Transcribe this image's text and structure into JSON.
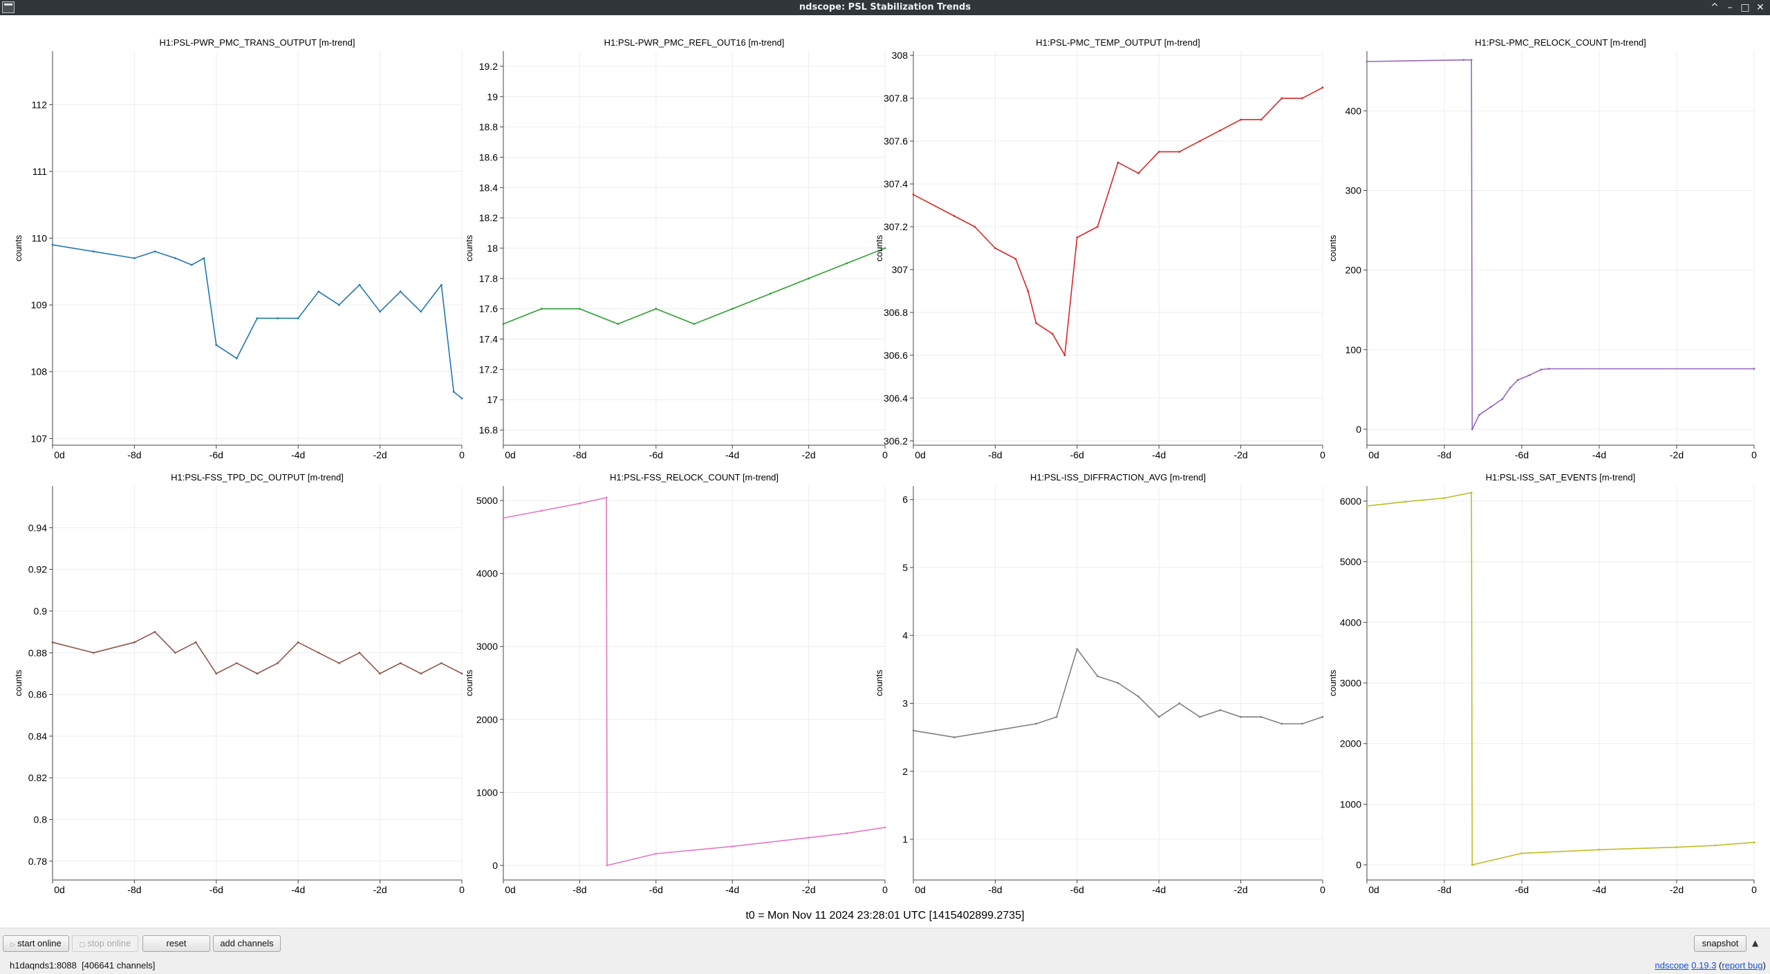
{
  "window": {
    "title": "ndscope: PSL Stabilization Trends",
    "controls": [
      "^",
      "–",
      "□",
      "✕"
    ]
  },
  "x_tick_labels": [
    "0d",
    "-8d",
    "-6d",
    "-4d",
    "-2d",
    "0"
  ],
  "t0_label": "t0 = Mon Nov 11 2024 23:28:01 UTC [1415402899.2735]",
  "toolbar": {
    "start_online": "start online",
    "stop_online": "stop online",
    "reset": "reset",
    "add_channels": "add channels",
    "snapshot": "snapshot",
    "collapse_icon": "triangle-up-icon"
  },
  "status": {
    "server": "h1daqnds1:8088",
    "channels": "[406641 channels]",
    "app_name": "ndscope",
    "version": "0.19.3",
    "report": "report bug"
  },
  "chart_data": [
    {
      "type": "line",
      "title": "H1:PSL-PWR_PMC_TRANS_OUTPUT [m-trend]",
      "ylabel": "counts",
      "color": "#1f77b4",
      "ylim": [
        106.9,
        112.8
      ],
      "yticks": [
        "107",
        "108",
        "109",
        "110",
        "111",
        "112"
      ],
      "xlim": [
        -10,
        0
      ],
      "x": [
        -10,
        -9,
        -8,
        -7.5,
        -7,
        -6.6,
        -6.3,
        -6,
        -5.5,
        -5,
        -4.5,
        -4,
        -3.5,
        -3,
        -2.5,
        -2,
        -1.5,
        -1,
        -0.5,
        -0.2,
        0
      ],
      "series": [
        {
          "values": [
            109.9,
            109.8,
            109.7,
            109.8,
            109.7,
            109.6,
            109.7,
            108.4,
            108.2,
            108.8,
            108.8,
            108.8,
            109.2,
            109.0,
            109.3,
            108.9,
            109.2,
            108.9,
            109.3,
            107.7,
            107.6
          ]
        }
      ]
    },
    {
      "type": "line",
      "title": "H1:PSL-PWR_PMC_REFL_OUT16 [m-trend]",
      "ylabel": "counts",
      "color": "#2ca02c",
      "ylim": [
        16.7,
        19.3
      ],
      "yticks": [
        "16.8",
        "17",
        "17.2",
        "17.4",
        "17.6",
        "17.8",
        "18",
        "18.2",
        "18.4",
        "18.6",
        "18.8",
        "19",
        "19.2"
      ],
      "xlim": [
        -10,
        0
      ],
      "x": [
        -10,
        -9,
        -8,
        -7,
        -6,
        -5,
        -4,
        -3,
        -2,
        -1,
        0
      ],
      "series": [
        {
          "values": [
            17.5,
            17.6,
            17.6,
            17.5,
            17.6,
            17.5,
            17.6,
            17.7,
            17.8,
            17.9,
            18.0
          ]
        }
      ]
    },
    {
      "type": "line",
      "title": "H1:PSL-PMC_TEMP_OUTPUT [m-trend]",
      "ylabel": "counts",
      "color": "#d62728",
      "ylim": [
        306.18,
        308.02
      ],
      "yticks": [
        "306.2",
        "306.4",
        "306.6",
        "306.8",
        "307",
        "307.2",
        "307.4",
        "307.6",
        "307.8",
        "308"
      ],
      "xlim": [
        -10,
        0
      ],
      "x": [
        -10,
        -9,
        -8.5,
        -8,
        -7.5,
        -7.2,
        -7,
        -6.6,
        -6.3,
        -6,
        -5.5,
        -5,
        -4.5,
        -4,
        -3.5,
        -3,
        -2.5,
        -2,
        -1.5,
        -1,
        -0.5,
        0
      ],
      "series": [
        {
          "values": [
            307.35,
            307.25,
            307.2,
            307.1,
            307.05,
            306.9,
            306.75,
            306.7,
            306.6,
            307.15,
            307.2,
            307.5,
            307.45,
            307.55,
            307.55,
            307.6,
            307.65,
            307.7,
            307.7,
            307.8,
            307.8,
            307.85
          ]
        }
      ]
    },
    {
      "type": "line",
      "title": "H1:PSL-PMC_RELOCK_COUNT [m-trend]",
      "ylabel": "counts",
      "color": "#9467bd",
      "ylim": [
        -20,
        475
      ],
      "yticks": [
        "0",
        "100",
        "200",
        "300",
        "400"
      ],
      "xlim": [
        -10,
        0
      ],
      "x": [
        -10,
        -7.5,
        -7.3,
        -7.28,
        -7.1,
        -6.8,
        -6.5,
        -6.3,
        -6.1,
        -5.8,
        -5.5,
        -5.3,
        0
      ],
      "series": [
        {
          "values": [
            462,
            464,
            464,
            0,
            18,
            28,
            38,
            52,
            62,
            68,
            75,
            76,
            76
          ]
        }
      ]
    },
    {
      "type": "line",
      "title": "H1:PSL-FSS_TPD_DC_OUTPUT [m-trend]",
      "ylabel": "counts",
      "color": "#8c564b",
      "ylim": [
        0.771,
        0.96
      ],
      "yticks": [
        "0.78",
        "0.8",
        "0.82",
        "0.84",
        "0.86",
        "0.88",
        "0.9",
        "0.92",
        "0.94"
      ],
      "xlim": [
        -10,
        0
      ],
      "x": [
        -10,
        -9,
        -8,
        -7.5,
        -7,
        -6.5,
        -6,
        -5.5,
        -5,
        -4.5,
        -4,
        -3.5,
        -3,
        -2.5,
        -2,
        -1.5,
        -1,
        -0.5,
        0
      ],
      "series": [
        {
          "values": [
            0.885,
            0.88,
            0.885,
            0.89,
            0.88,
            0.885,
            0.87,
            0.875,
            0.87,
            0.875,
            0.885,
            0.88,
            0.875,
            0.88,
            0.87,
            0.875,
            0.87,
            0.875,
            0.87
          ]
        }
      ]
    },
    {
      "type": "line",
      "title": "H1:PSL-FSS_RELOCK_COUNT [m-trend]",
      "ylabel": "counts",
      "color": "#e377c2",
      "ylim": [
        -200,
        5200
      ],
      "yticks": [
        "0",
        "1000",
        "2000",
        "3000",
        "4000",
        "5000"
      ],
      "xlim": [
        -10,
        0
      ],
      "x": [
        -10,
        -9,
        -8,
        -7.3,
        -7.28,
        -6,
        -4,
        -2,
        -1,
        0
      ],
      "series": [
        {
          "values": [
            4760,
            4860,
            4960,
            5040,
            0,
            160,
            260,
            380,
            440,
            520
          ]
        }
      ]
    },
    {
      "type": "line",
      "title": "H1:PSL-ISS_DIFFRACTION_AVG [m-trend]",
      "ylabel": "counts",
      "color": "#7f7f7f",
      "ylim": [
        0.4,
        6.2
      ],
      "yticks": [
        "1",
        "2",
        "3",
        "4",
        "5",
        "6"
      ],
      "xlim": [
        -10,
        0
      ],
      "x": [
        -10,
        -9,
        -8,
        -7,
        -6.5,
        -6,
        -5.5,
        -5,
        -4.5,
        -4,
        -3.5,
        -3,
        -2.5,
        -2,
        -1.5,
        -1,
        -0.5,
        0
      ],
      "series": [
        {
          "values": [
            2.6,
            2.5,
            2.6,
            2.7,
            2.8,
            3.8,
            3.4,
            3.3,
            3.1,
            2.8,
            3.0,
            2.8,
            2.9,
            2.8,
            2.8,
            2.7,
            2.7,
            2.8
          ]
        }
      ]
    },
    {
      "type": "line",
      "title": "H1:PSL-ISS_SAT_EVENTS [m-trend]",
      "ylabel": "counts",
      "color": "#bcbd22",
      "ylim": [
        -250,
        6250
      ],
      "yticks": [
        "0",
        "1000",
        "2000",
        "3000",
        "4000",
        "5000",
        "6000"
      ],
      "xlim": [
        -10,
        0
      ],
      "x": [
        -10,
        -9,
        -8,
        -7.3,
        -7.28,
        -6,
        -4,
        -2,
        -1,
        0
      ],
      "series": [
        {
          "values": [
            5920,
            5990,
            6050,
            6140,
            0,
            190,
            250,
            290,
            320,
            370
          ]
        }
      ]
    }
  ]
}
